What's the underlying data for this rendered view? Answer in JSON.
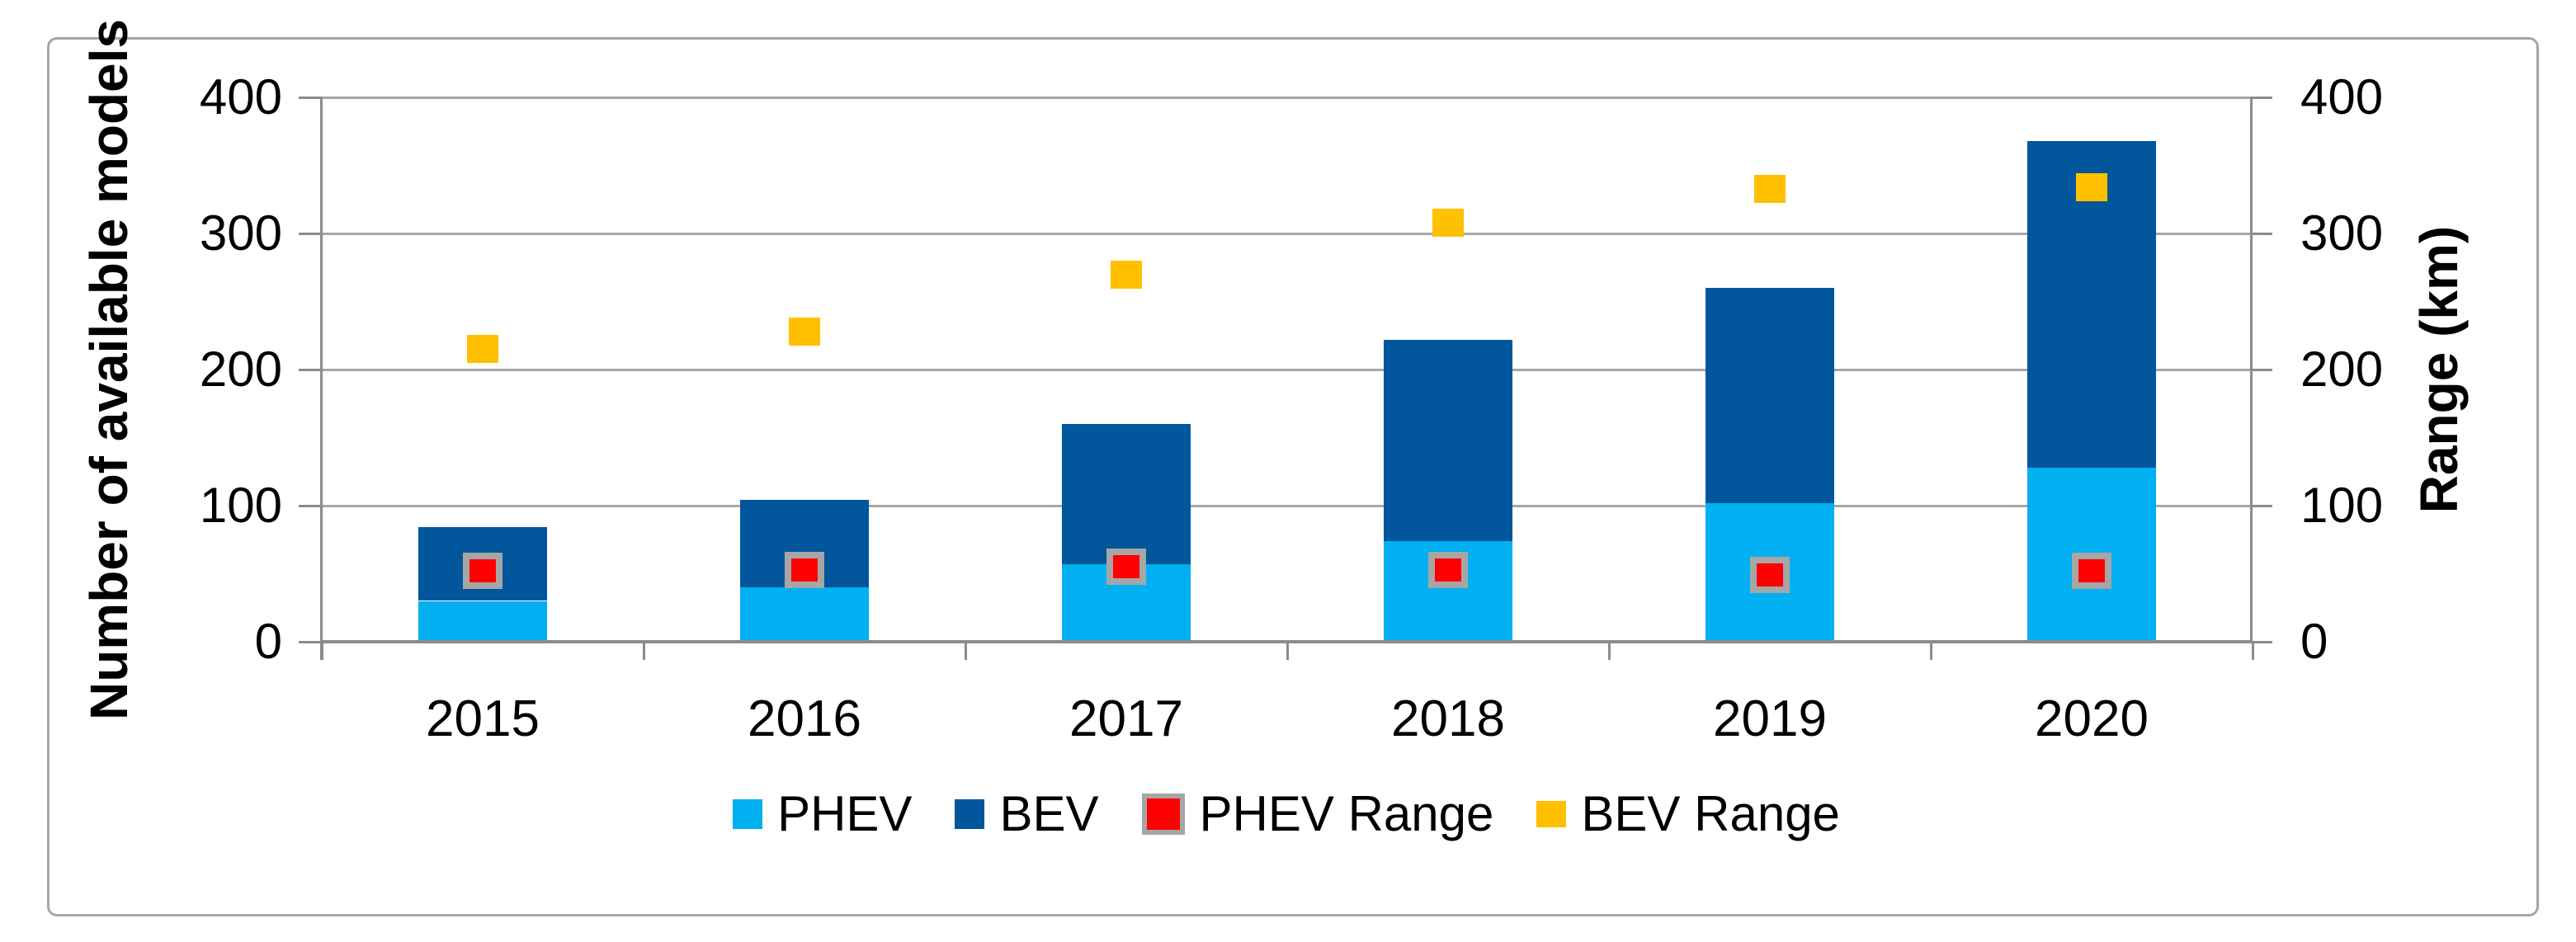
{
  "chart_data": {
    "type": "bar",
    "subtype": "stacked-bar-with-scatter-overlay",
    "categories": [
      "2015",
      "2016",
      "2017",
      "2018",
      "2019",
      "2020"
    ],
    "series": [
      {
        "name": "PHEV",
        "type": "bar",
        "stack": "models",
        "axis": "left",
        "color": "#00B0F0",
        "values": [
          30,
          40,
          57,
          74,
          102,
          128
        ]
      },
      {
        "name": "BEV",
        "type": "bar",
        "stack": "models",
        "axis": "left",
        "color": "#02569B",
        "values": [
          54,
          64,
          103,
          148,
          158,
          240
        ]
      },
      {
        "name": "PHEV Range",
        "type": "scatter",
        "marker": "square",
        "axis": "right",
        "color": "#FF0000",
        "marker_border_color": "#A6A6A6",
        "values": [
          52,
          53,
          55,
          53,
          49,
          52
        ]
      },
      {
        "name": "BEV Range",
        "type": "scatter",
        "marker": "square",
        "axis": "right",
        "color": "#FFC000",
        "values": [
          215,
          228,
          270,
          308,
          333,
          334
        ]
      }
    ],
    "stack_totals": [
      84,
      104,
      160,
      222,
      260,
      368
    ],
    "left_axis": {
      "title": "Number of available models",
      "min": 0,
      "max": 400,
      "ticks": [
        400,
        300,
        200,
        100,
        0
      ]
    },
    "right_axis": {
      "title": "Range (km)",
      "min": 0,
      "max": 400,
      "ticks": [
        400,
        300,
        200,
        100,
        0
      ]
    },
    "x_axis": {
      "labels": [
        "2015",
        "2016",
        "2017",
        "2018",
        "2019",
        "2020"
      ]
    },
    "legend": {
      "position": "bottom",
      "items": [
        "PHEV",
        "BEV",
        "PHEV Range",
        "BEV Range"
      ]
    },
    "grid": true,
    "colors": {
      "gridline": "#A6A6A6",
      "axis_line": "#8C8C8C",
      "figure_border": "#A6A6A6",
      "background": "#FFFFFF",
      "text": "#000000"
    }
  }
}
